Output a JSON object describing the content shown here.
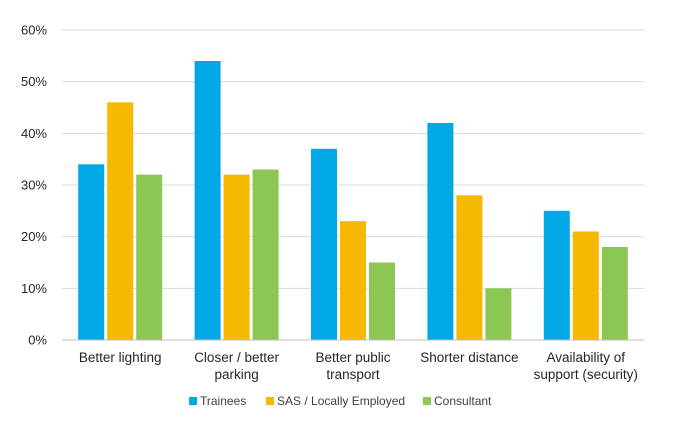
{
  "chart_data": {
    "type": "bar",
    "categories": [
      [
        "Better lighting"
      ],
      [
        "Closer / better",
        "parking"
      ],
      [
        "Better public",
        "transport"
      ],
      [
        "Shorter distance"
      ],
      [
        "Availability of",
        "support (security)"
      ]
    ],
    "series": [
      {
        "name": "Trainees",
        "color": "#00a9e6",
        "values": [
          34,
          54,
          37,
          42,
          25
        ]
      },
      {
        "name": "SAS / Locally Employed",
        "color": "#f6b800",
        "values": [
          46,
          32,
          23,
          28,
          21
        ]
      },
      {
        "name": "Consultant",
        "color": "#8cc653",
        "values": [
          32,
          33,
          15,
          10,
          18
        ]
      }
    ],
    "ylim": [
      0,
      60
    ],
    "yticks": [
      0,
      10,
      20,
      30,
      40,
      50,
      60
    ],
    "ytick_labels": [
      "0%",
      "10%",
      "20%",
      "30%",
      "40%",
      "50%",
      "60%"
    ],
    "grid": true,
    "legend": "bottom"
  }
}
